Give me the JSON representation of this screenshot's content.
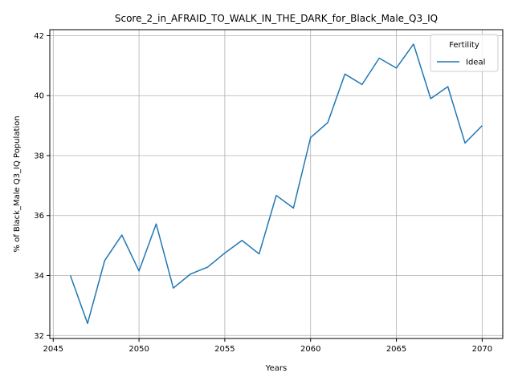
{
  "chart_data": {
    "type": "line",
    "title": "Score_2_in_AFRAID_TO_WALK_IN_THE_DARK_for_Black_Male_Q3_IQ",
    "xlabel": "Years",
    "ylabel": "% of Black_Male Q3_IQ Population",
    "xlim": [
      2044.8,
      2071.2
    ],
    "ylim": [
      31.9,
      42.2
    ],
    "xticks": [
      2045,
      2050,
      2055,
      2060,
      2065,
      2070
    ],
    "yticks": [
      32,
      34,
      36,
      38,
      40,
      42
    ],
    "grid": true,
    "legend": {
      "title": "Fertility",
      "placement": "top-right"
    },
    "x": [
      2046,
      2047,
      2048,
      2049,
      2050,
      2051,
      2052,
      2053,
      2054,
      2055,
      2056,
      2057,
      2058,
      2059,
      2060,
      2061,
      2062,
      2063,
      2064,
      2065,
      2066,
      2067,
      2068,
      2069,
      2070
    ],
    "series": [
      {
        "name": "Ideal",
        "color": "#1f77b4",
        "values": [
          34.0,
          32.4,
          34.5,
          35.35,
          34.15,
          35.72,
          33.58,
          34.05,
          34.28,
          34.75,
          35.17,
          34.72,
          36.67,
          36.25,
          38.6,
          39.1,
          40.72,
          40.37,
          41.25,
          40.92,
          41.72,
          39.9,
          40.3,
          38.42,
          39.0
        ]
      }
    ]
  }
}
